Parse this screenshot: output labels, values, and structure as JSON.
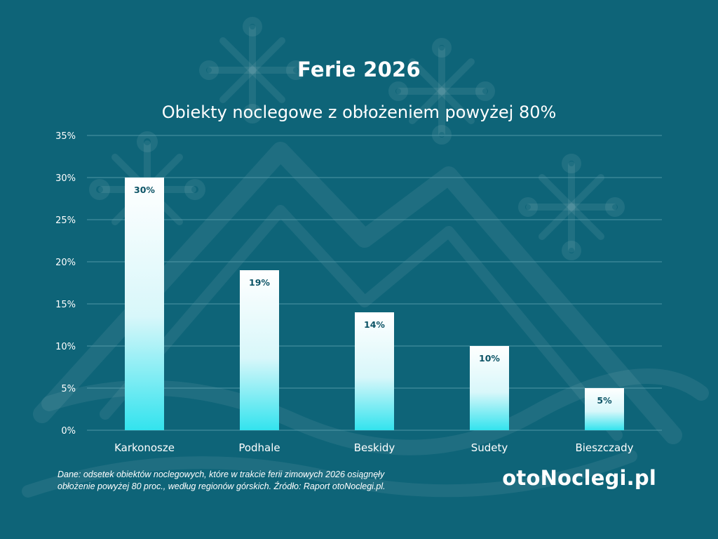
{
  "header": {
    "title": "Ferie 2026",
    "subtitle": "Obiekty noclegowe z obłożeniem powyżej 80%"
  },
  "chart_data": {
    "type": "bar",
    "title": "Ferie 2026",
    "subtitle": "Obiekty noclegowe z obłożeniem powyżej 80%",
    "categories": [
      "Karkonosze",
      "Podhale",
      "Beskidy",
      "Sudety",
      "Bieszczady"
    ],
    "values": [
      30,
      19,
      14,
      10,
      5
    ],
    "data_labels": [
      "30%",
      "19%",
      "14%",
      "10%",
      "5%"
    ],
    "ylim": [
      0,
      35
    ],
    "yticks": [
      0,
      5,
      10,
      15,
      20,
      25,
      30,
      35
    ],
    "ytick_labels": [
      "0%",
      "5%",
      "10%",
      "15%",
      "20%",
      "25%",
      "30%",
      "35%"
    ],
    "xlabel": "",
    "ylabel": "",
    "grid": true,
    "colors": {
      "background": "#0e6478",
      "bar_top": "#ffffff",
      "bar_bottom": "#33e3ee",
      "grid": "#5fa2b2",
      "label": "#0d5466"
    }
  },
  "footer": {
    "note": "Dane: odsetek obiektów noclegowych, które w trakcie ferii zimowych 2026 osiągnęły obłożenie powyżej 80 proc., według regionów górskich. Źródło: Raport otoNoclegi.pl.",
    "brand": "otoNoclegi.pl"
  }
}
